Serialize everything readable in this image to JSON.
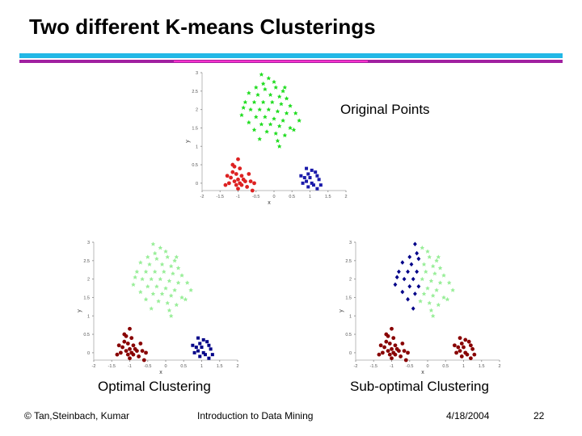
{
  "slide": {
    "title": "Two different K-means Clusterings",
    "footer": {
      "copyright": "© Tan,Steinbach, Kumar",
      "course": "Introduction to Data Mining",
      "date": "4/18/2004",
      "page": "22"
    }
  },
  "chart_data": [
    {
      "type": "scatter",
      "title": "Original Points",
      "xlabel": "x",
      "ylabel": "y",
      "xlim": [
        -2,
        2
      ],
      "ylim": [
        -0.2,
        3
      ],
      "xticks": [
        "-2",
        "-1.5",
        "-1",
        "-0.5",
        "0",
        "0.5",
        "1",
        "1.5",
        "2"
      ],
      "yticks": [
        "0",
        "0.5",
        "1",
        "1.5",
        "2",
        "2.5",
        "3"
      ],
      "grid": false,
      "series": [
        {
          "color": "#22dd22",
          "marker": "star",
          "cluster": "top",
          "points_from": "top"
        },
        {
          "color": "#dd2222",
          "marker": "circle",
          "cluster": "left",
          "points_from": "left"
        },
        {
          "color": "#1a1aaa",
          "marker": "square",
          "cluster": "right",
          "points_from": "right"
        }
      ]
    },
    {
      "type": "scatter",
      "title": "Optimal Clustering",
      "xlabel": "x",
      "ylabel": "y",
      "xlim": [
        -2,
        2
      ],
      "ylim": [
        -0.2,
        3
      ],
      "xticks": [
        "-2",
        "-1.5",
        "-1",
        "-0.5",
        "0",
        "0.5",
        "1",
        "1.5",
        "2"
      ],
      "yticks": [
        "0",
        "0.5",
        "1",
        "1.5",
        "2",
        "2.5",
        "3"
      ],
      "grid": false,
      "series": [
        {
          "color": "#99ee99",
          "marker": "star",
          "points_from": "top"
        },
        {
          "color": "#880000",
          "marker": "circle",
          "points_from": "left"
        },
        {
          "color": "#000088",
          "marker": "square",
          "points_from": "right"
        }
      ]
    },
    {
      "type": "scatter",
      "title": "Sub-optimal Clustering",
      "xlabel": "x",
      "ylabel": "y",
      "xlim": [
        -2,
        2
      ],
      "ylim": [
        -0.2,
        3
      ],
      "xticks": [
        "-2",
        "-1.5",
        "-1",
        "-0.5",
        "0",
        "0.5",
        "1",
        "1.5",
        "2"
      ],
      "yticks": [
        "0",
        "0.5",
        "1",
        "1.5",
        "2",
        "2.5",
        "3"
      ],
      "grid": false,
      "series": [
        {
          "color": "#000088",
          "marker": "diamond",
          "points_from": "top_left_half"
        },
        {
          "color": "#99ee99",
          "marker": "star",
          "points_from": "top_right_half"
        },
        {
          "color": "#880000",
          "marker": "circle",
          "points_from": "bottom_both"
        }
      ]
    }
  ],
  "clusters": {
    "top": [
      [
        -0.35,
        2.95
      ],
      [
        -0.15,
        2.85
      ],
      [
        0.0,
        2.75
      ],
      [
        -0.5,
        2.6
      ],
      [
        -0.25,
        2.55
      ],
      [
        0.05,
        2.6
      ],
      [
        0.25,
        2.5
      ],
      [
        -0.7,
        2.45
      ],
      [
        -0.45,
        2.4
      ],
      [
        -0.1,
        2.4
      ],
      [
        0.15,
        2.35
      ],
      [
        0.35,
        2.3
      ],
      [
        -0.8,
        2.2
      ],
      [
        -0.55,
        2.2
      ],
      [
        -0.3,
        2.2
      ],
      [
        -0.05,
        2.2
      ],
      [
        0.2,
        2.15
      ],
      [
        0.45,
        2.1
      ],
      [
        -0.65,
        2.0
      ],
      [
        -0.4,
        2.0
      ],
      [
        -0.15,
        2.0
      ],
      [
        0.1,
        1.95
      ],
      [
        0.35,
        1.9
      ],
      [
        0.6,
        1.9
      ],
      [
        -0.9,
        1.85
      ],
      [
        -0.5,
        1.8
      ],
      [
        -0.25,
        1.8
      ],
      [
        0.0,
        1.75
      ],
      [
        0.25,
        1.7
      ],
      [
        -0.7,
        1.65
      ],
      [
        -0.35,
        1.6
      ],
      [
        -0.1,
        1.6
      ],
      [
        0.15,
        1.55
      ],
      [
        0.45,
        1.5
      ],
      [
        -0.55,
        1.45
      ],
      [
        -0.2,
        1.4
      ],
      [
        0.05,
        1.35
      ],
      [
        0.3,
        1.3
      ],
      [
        -0.4,
        1.2
      ],
      [
        0.1,
        1.15
      ],
      [
        0.55,
        1.45
      ],
      [
        0.7,
        1.7
      ],
      [
        -0.85,
        2.05
      ],
      [
        0.3,
        2.6
      ],
      [
        -0.3,
        2.7
      ],
      [
        0.15,
        1.0
      ]
    ],
    "left": [
      [
        -1.0,
        0.65
      ],
      [
        -1.1,
        0.45
      ],
      [
        -0.95,
        0.4
      ],
      [
        -1.15,
        0.3
      ],
      [
        -1.05,
        0.25
      ],
      [
        -0.9,
        0.2
      ],
      [
        -1.2,
        0.15
      ],
      [
        -1.0,
        0.1
      ],
      [
        -0.85,
        0.1
      ],
      [
        -1.1,
        0.05
      ],
      [
        -0.95,
        0.0
      ],
      [
        -1.25,
        0.0
      ],
      [
        -0.8,
        0.05
      ],
      [
        -1.05,
        -0.05
      ],
      [
        -0.9,
        -0.05
      ],
      [
        -0.75,
        -0.1
      ],
      [
        -1.0,
        -0.15
      ],
      [
        -0.65,
        0.05
      ],
      [
        -1.3,
        0.2
      ],
      [
        -0.7,
        0.25
      ],
      [
        -1.15,
        0.5
      ],
      [
        -1.35,
        -0.05
      ],
      [
        -0.55,
        0.0
      ],
      [
        -0.6,
        -0.2
      ]
    ],
    "right": [
      [
        0.9,
        0.4
      ],
      [
        1.05,
        0.35
      ],
      [
        0.95,
        0.25
      ],
      [
        1.15,
        0.3
      ],
      [
        0.85,
        0.15
      ],
      [
        1.0,
        0.15
      ],
      [
        1.2,
        0.2
      ],
      [
        0.9,
        0.05
      ],
      [
        1.05,
        0.0
      ],
      [
        1.25,
        0.1
      ],
      [
        0.8,
        0.0
      ],
      [
        1.1,
        -0.05
      ],
      [
        0.95,
        -0.1
      ],
      [
        1.3,
        -0.05
      ],
      [
        0.75,
        0.2
      ],
      [
        1.2,
        -0.15
      ]
    ]
  }
}
